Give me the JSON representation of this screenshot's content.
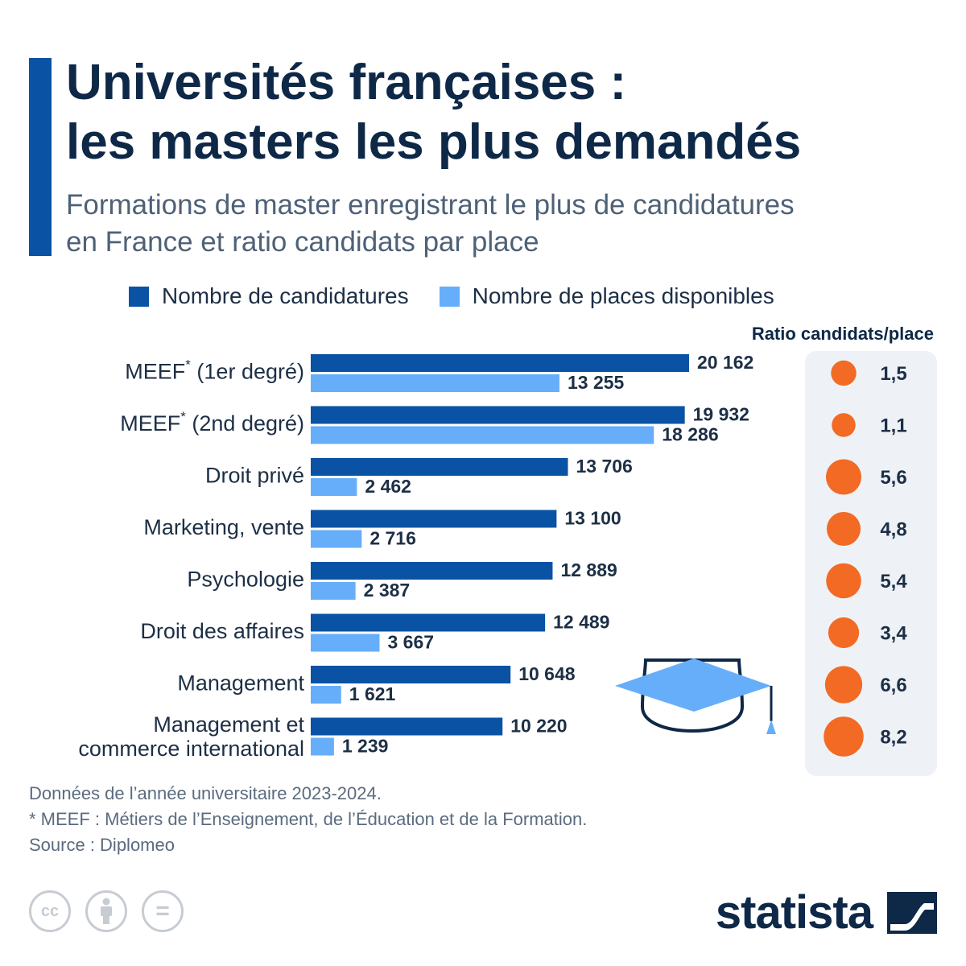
{
  "header": {
    "title_line1": "Universités françaises :",
    "title_line2": "les masters les plus demandés",
    "subtitle_line1": "Formations de master enregistrant le plus de candidatures",
    "subtitle_line2": "en France et ratio candidats par place"
  },
  "legend": {
    "applications": "Nombre de candidatures",
    "places": "Nombre de places disponibles"
  },
  "colors": {
    "applications": "#0a52a4",
    "places": "#66aefa",
    "ratio": "#f26a24",
    "cap": "#66aefa"
  },
  "chart_data": {
    "type": "bar",
    "orientation": "horizontal",
    "categories": [
      "MEEF* (1er degré)",
      "MEEF* (2nd degré)",
      "Droit privé",
      "Marketing, vente",
      "Psychologie",
      "Droit des affaires",
      "Management",
      "Management et commerce international"
    ],
    "series": [
      {
        "name": "Nombre de candidatures",
        "values": [
          20162,
          19932,
          13706,
          13100,
          12889,
          12489,
          10648,
          10220
        ],
        "labels": [
          "20 162",
          "19 932",
          "13 706",
          "13 100",
          "12 889",
          "12 489",
          "10 648",
          "10 220"
        ]
      },
      {
        "name": "Nombre de places disponibles",
        "values": [
          13255,
          18286,
          2462,
          2716,
          2387,
          3667,
          1621,
          1239
        ],
        "labels": [
          "13 255",
          "18 286",
          "2  462",
          "2 716",
          "2 387",
          "3 667",
          "1 621",
          "1 239"
        ]
      }
    ],
    "ratio": {
      "title": "Ratio candidats/place",
      "values": [
        1.5,
        1.1,
        5.6,
        4.8,
        5.4,
        3.4,
        6.6,
        8.2
      ],
      "labels": [
        "1,5",
        "1,1",
        "5,6",
        "4,8",
        "5,4",
        "3,4",
        "6,6",
        "8,2"
      ]
    }
  },
  "notes": {
    "year": "Données de l’année universitaire 2023-2024.",
    "meef": "* MEEF : Métiers de l’Enseignement, de l’Éducation et de la Formation.",
    "source": "Source : Diplomeo"
  },
  "footer": {
    "brand": "statista",
    "cc_label": "cc",
    "equals_label": "="
  },
  "icons": {
    "cap": "graduation-cap-icon",
    "cc": "creative-commons-icon",
    "by": "attribution-icon",
    "nd": "no-derivatives-icon",
    "logo": "statista-logo-icon"
  }
}
